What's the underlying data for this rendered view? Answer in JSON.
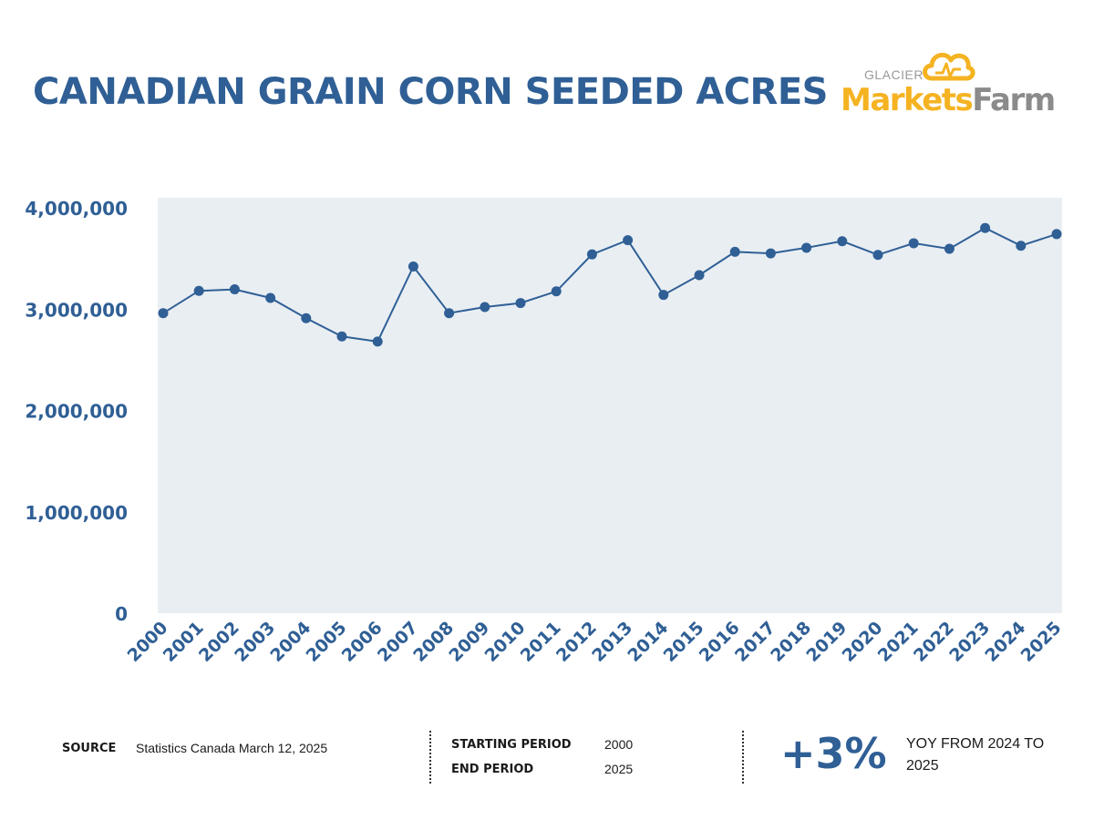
{
  "title": "CANADIAN GRAIN CORN SEEDED ACRES",
  "logo": {
    "small_text": "GLACIER",
    "brand_part1": "Markets",
    "brand_part2": "Farm",
    "colors": {
      "gold": "#f5b322",
      "gray": "#8b8b8b"
    }
  },
  "chart_data": {
    "type": "line",
    "title": "CANADIAN GRAIN CORN SEEDED ACRES",
    "categories": [
      "2000",
      "2001",
      "2002",
      "2003",
      "2004",
      "2005",
      "2006",
      "2007",
      "2008",
      "2009",
      "2010",
      "2011",
      "2012",
      "2013",
      "2014",
      "2015",
      "2016",
      "2017",
      "2018",
      "2019",
      "2020",
      "2021",
      "2022",
      "2023",
      "2024",
      "2025"
    ],
    "series": [
      {
        "values": [
          2960000,
          3180000,
          3195000,
          3110000,
          2910000,
          2730000,
          2680000,
          3420000,
          2960000,
          3020000,
          3060000,
          3175000,
          3540000,
          3680000,
          3140000,
          3335000,
          3565000,
          3550000,
          3605000,
          3670000,
          3535000,
          3650000,
          3595000,
          3800000,
          3625000,
          3740000
        ]
      }
    ],
    "yticks": [
      "0",
      "1,000,000",
      "2,000,000",
      "3,000,000",
      "4,000,000"
    ],
    "ylim": [
      0,
      4000000
    ],
    "grid": false,
    "colors": {
      "line": "#2f5f95",
      "plot_bg": "#e9eef3",
      "ticks": "#2f5f95"
    }
  },
  "footer": {
    "source_label": "SOURCE",
    "source_value": "Statistics Canada March 12, 2025",
    "start_label": "STARTING PERIOD",
    "start_value": "2000",
    "end_label": "END PERIOD",
    "end_value": "2025",
    "change": "+3%",
    "change_desc": "YOY FROM 2024 TO 2025"
  }
}
